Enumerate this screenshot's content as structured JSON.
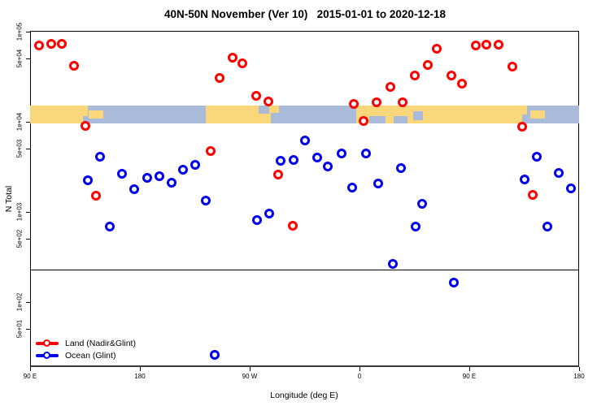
{
  "chart_data": {
    "type": "scatter",
    "title": "40N-50N November (Ver 10)   2015-01-01 to 2020-12-18",
    "xlabel": "Longitude (deg E)",
    "ylabel": "N Total",
    "x_axis": {
      "min": 90,
      "max": 540,
      "ticks": [
        {
          "v": 90,
          "label": "90 E"
        },
        {
          "v": 180,
          "label": "180"
        },
        {
          "v": 270,
          "label": "90 W"
        },
        {
          "v": 360,
          "label": "0"
        },
        {
          "v": 450,
          "label": "90 E"
        },
        {
          "v": 540,
          "label": "180"
        }
      ]
    },
    "y_axis": {
      "scale": "log",
      "top": 102000,
      "bottom": 19,
      "ticks": [
        {
          "v": 100000,
          "label": "1e+05"
        },
        {
          "v": 50000,
          "label": "5e+04"
        },
        {
          "v": 10000,
          "label": "1e+04"
        },
        {
          "v": 5000,
          "label": "5e+03"
        },
        {
          "v": 1000,
          "label": "1e+03"
        },
        {
          "v": 500,
          "label": "5e+02"
        },
        {
          "v": 100,
          "label": "1e+02"
        },
        {
          "v": 50,
          "label": "5e+01"
        }
      ]
    },
    "reference_line_n": 230,
    "grid": false,
    "legend_position": "bottom-left",
    "series": [
      {
        "name": "Land (Nadir&Glint)",
        "color": "#FF0000",
        "points": [
          [
            97,
            70000
          ],
          [
            107,
            73000
          ],
          [
            116,
            73000
          ],
          [
            126,
            42000
          ],
          [
            135,
            9000
          ],
          [
            144,
            1500
          ],
          [
            238,
            4700
          ],
          [
            245,
            30500
          ],
          [
            256,
            51000
          ],
          [
            264,
            44500
          ],
          [
            275,
            19500
          ],
          [
            285,
            16800
          ],
          [
            293,
            2600
          ],
          [
            305,
            700
          ],
          [
            355,
            15800
          ],
          [
            363,
            10200
          ],
          [
            374,
            16400
          ],
          [
            385,
            24400
          ],
          [
            395,
            16400
          ],
          [
            405,
            32500
          ],
          [
            416,
            43000
          ],
          [
            423,
            65000
          ],
          [
            435,
            32500
          ],
          [
            444,
            26500
          ],
          [
            455,
            70000
          ],
          [
            464,
            72000
          ],
          [
            474,
            72000
          ],
          [
            485,
            41000
          ],
          [
            493,
            8800
          ],
          [
            502,
            1530
          ]
        ]
      },
      {
        "name": "Ocean (Glint)",
        "color": "#0000EE",
        "points": [
          [
            137,
            2240
          ],
          [
            147,
            4100
          ],
          [
            155,
            690
          ],
          [
            165,
            2650
          ],
          [
            175,
            1790
          ],
          [
            186,
            2390
          ],
          [
            196,
            2490
          ],
          [
            206,
            2110
          ],
          [
            215,
            2940
          ],
          [
            225,
            3330
          ],
          [
            234,
            1340
          ],
          [
            241,
            26
          ],
          [
            276,
            810
          ],
          [
            286,
            960
          ],
          [
            295,
            3700
          ],
          [
            306,
            3780
          ],
          [
            315,
            6200
          ],
          [
            325,
            4000
          ],
          [
            334,
            3200
          ],
          [
            345,
            4460
          ],
          [
            354,
            1860
          ],
          [
            365,
            4460
          ],
          [
            375,
            2070
          ],
          [
            387,
            265
          ],
          [
            394,
            3060
          ],
          [
            406,
            690
          ],
          [
            411,
            1230
          ],
          [
            437,
            164
          ],
          [
            495,
            2290
          ],
          [
            505,
            4100
          ],
          [
            514,
            690
          ],
          [
            523,
            2700
          ],
          [
            533,
            1820
          ]
        ]
      }
    ],
    "map_band": {
      "n_top": 15000,
      "n_bottom": 9500,
      "land_color": "#FBD77C",
      "ocean_color": "#A9BBD8",
      "segments": [
        {
          "type": "land",
          "from": 90,
          "to": 137
        },
        {
          "type": "ocean",
          "from": 137,
          "to": 234
        },
        {
          "type": "land",
          "from": 234,
          "to": 287
        },
        {
          "type": "ocean",
          "from": 287,
          "to": 357
        },
        {
          "type": "land",
          "from": 357,
          "to": 497
        },
        {
          "type": "ocean",
          "from": 497,
          "to": 540
        }
      ],
      "details": [
        {
          "type": "ocean",
          "from": 133,
          "to": 138,
          "v0": 0.55,
          "v1": 1
        },
        {
          "type": "land",
          "from": 138,
          "to": 150,
          "v0": 0.25,
          "v1": 0.7
        },
        {
          "type": "ocean",
          "from": 277,
          "to": 286,
          "v0": 0,
          "v1": 0.45
        },
        {
          "type": "land",
          "from": 287,
          "to": 294,
          "v0": 0,
          "v1": 0.4
        },
        {
          "type": "ocean",
          "from": 368,
          "to": 381,
          "v0": 0.55,
          "v1": 1
        },
        {
          "type": "ocean",
          "from": 388,
          "to": 399,
          "v0": 0.55,
          "v1": 1
        },
        {
          "type": "ocean",
          "from": 404,
          "to": 412,
          "v0": 0.3,
          "v1": 0.8
        },
        {
          "type": "ocean",
          "from": 493,
          "to": 498,
          "v0": 0.5,
          "v1": 1
        },
        {
          "type": "land",
          "from": 500,
          "to": 512,
          "v0": 0.25,
          "v1": 0.7
        }
      ]
    }
  },
  "legend": {
    "items": [
      {
        "label": "Land (Nadir&Glint)",
        "color": "#FF0000"
      },
      {
        "label": "Ocean (Glint)",
        "color": "#0000EE"
      }
    ]
  }
}
